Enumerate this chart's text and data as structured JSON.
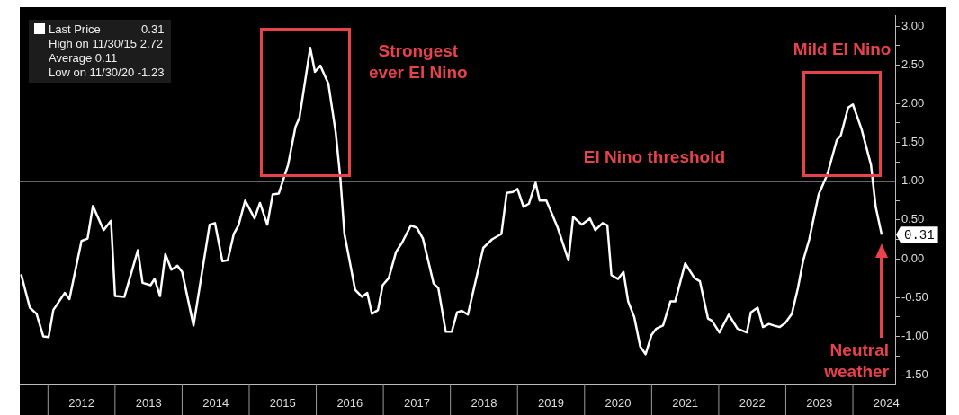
{
  "chart_data": {
    "type": "line",
    "x": [
      2011.6,
      2011.73,
      2011.83,
      2011.93,
      2012.01,
      2012.08,
      2012.25,
      2012.32,
      2012.5,
      2012.59,
      2012.67,
      2012.83,
      2012.94,
      2013.0,
      2013.14,
      2013.34,
      2013.41,
      2013.53,
      2013.59,
      2013.67,
      2013.75,
      2013.84,
      2013.93,
      2014.0,
      2014.17,
      2014.41,
      2014.49,
      2014.6,
      2014.68,
      2014.77,
      2014.84,
      2014.94,
      2015.08,
      2015.16,
      2015.27,
      2015.35,
      2015.44,
      2015.58,
      2015.69,
      2015.75,
      2015.91,
      2015.98,
      2016.06,
      2016.18,
      2016.29,
      2016.36,
      2016.42,
      2016.58,
      2016.68,
      2016.76,
      2016.83,
      2016.92,
      2016.99,
      2017.08,
      2017.19,
      2017.28,
      2017.41,
      2017.5,
      2017.59,
      2017.75,
      2017.82,
      2017.93,
      2018.02,
      2018.1,
      2018.17,
      2018.26,
      2018.49,
      2018.62,
      2018.76,
      2018.84,
      2018.93,
      2019.0,
      2019.09,
      2019.17,
      2019.27,
      2019.33,
      2019.43,
      2019.6,
      2019.76,
      2019.83,
      2019.96,
      2020.08,
      2020.16,
      2020.27,
      2020.34,
      2020.4,
      2020.5,
      2020.58,
      2020.65,
      2020.74,
      2020.83,
      2020.91,
      2021.0,
      2021.07,
      2021.17,
      2021.28,
      2021.35,
      2021.5,
      2021.64,
      2021.72,
      2021.84,
      2021.9,
      2022.01,
      2022.15,
      2022.28,
      2022.42,
      2022.48,
      2022.58,
      2022.66,
      2022.75,
      2022.82,
      2022.91,
      2022.99,
      2023.09,
      2023.18,
      2023.26,
      2023.35,
      2023.49,
      2023.62,
      2023.76,
      2023.82,
      2023.93,
      2024.0,
      2024.13,
      2024.27,
      2024.34,
      2024.43
    ],
    "series": [
      {
        "name": "Last Price",
        "color": "#ffffff",
        "values": [
          -0.2,
          -0.63,
          -0.71,
          -1.0,
          -1.01,
          -0.66,
          -0.44,
          -0.52,
          0.23,
          0.26,
          0.68,
          0.37,
          0.49,
          -0.48,
          -0.49,
          0.11,
          -0.31,
          -0.34,
          -0.26,
          -0.48,
          0.06,
          -0.14,
          -0.09,
          -0.17,
          -0.86,
          0.44,
          0.46,
          -0.03,
          -0.02,
          0.32,
          0.43,
          0.75,
          0.52,
          0.72,
          0.44,
          0.83,
          0.84,
          1.21,
          1.7,
          1.82,
          2.72,
          2.41,
          2.49,
          2.26,
          1.63,
          1.03,
          0.32,
          -0.4,
          -0.49,
          -0.44,
          -0.71,
          -0.66,
          -0.34,
          -0.25,
          0.09,
          0.21,
          0.43,
          0.4,
          0.26,
          -0.32,
          -0.38,
          -0.94,
          -0.94,
          -0.69,
          -0.67,
          -0.72,
          0.14,
          0.25,
          0.32,
          0.85,
          0.86,
          0.9,
          0.67,
          0.71,
          0.98,
          0.75,
          0.75,
          0.4,
          -0.02,
          0.54,
          0.44,
          0.52,
          0.37,
          0.46,
          0.43,
          -0.21,
          -0.26,
          -0.17,
          -0.55,
          -0.75,
          -1.13,
          -1.23,
          -0.98,
          -0.9,
          -0.86,
          -0.55,
          -0.55,
          -0.06,
          -0.25,
          -0.29,
          -0.77,
          -0.8,
          -0.95,
          -0.72,
          -0.9,
          -0.95,
          -0.69,
          -0.63,
          -0.88,
          -0.84,
          -0.86,
          -0.88,
          -0.83,
          -0.71,
          -0.38,
          -0.02,
          0.25,
          0.83,
          1.09,
          1.53,
          1.59,
          1.95,
          1.99,
          1.67,
          1.21,
          0.67,
          0.31
        ],
        "value_labels": [
          null,
          null,
          null,
          null,
          null,
          null,
          null,
          null,
          null,
          null,
          null,
          null,
          null,
          null,
          null,
          null,
          null,
          null,
          null,
          null,
          null,
          null,
          null,
          null,
          null,
          null,
          null,
          null,
          null,
          null,
          null,
          null,
          null,
          null,
          null,
          null,
          null,
          null,
          null,
          null,
          null,
          null,
          null,
          null,
          null,
          null,
          null,
          null,
          null,
          null,
          null,
          null,
          null,
          null,
          null,
          null,
          null,
          null,
          null,
          null,
          null,
          null,
          null,
          null,
          null,
          null,
          null,
          null,
          null,
          null,
          null,
          null,
          null,
          null,
          null,
          null,
          null,
          null,
          null,
          null,
          null,
          null,
          null,
          null,
          null,
          null,
          null,
          null,
          null,
          null,
          null,
          null,
          null,
          null,
          null,
          null,
          null,
          null,
          null,
          null,
          null,
          null,
          null,
          null,
          null,
          null,
          null,
          null,
          null,
          null,
          null,
          null,
          null,
          null,
          null,
          null,
          null,
          null,
          null,
          null,
          null,
          null,
          null,
          null,
          null,
          null,
          "0.31"
        ]
      }
    ],
    "xlim": [
      2011.58,
      2024.63
    ],
    "xticks": [
      {
        "value": 2012.5,
        "label": "2012"
      },
      {
        "value": 2013.5,
        "label": "2013"
      },
      {
        "value": 2014.5,
        "label": "2014"
      },
      {
        "value": 2015.5,
        "label": "2015"
      },
      {
        "value": 2016.5,
        "label": "2016"
      },
      {
        "value": 2017.5,
        "label": "2017"
      },
      {
        "value": 2018.5,
        "label": "2018"
      },
      {
        "value": 2019.5,
        "label": "2019"
      },
      {
        "value": 2020.5,
        "label": "2020"
      },
      {
        "value": 2021.5,
        "label": "2021"
      },
      {
        "value": 2022.5,
        "label": "2022"
      },
      {
        "value": 2023.5,
        "label": "2023"
      },
      {
        "value": 2024.5,
        "label": "2024"
      }
    ],
    "ylim": [
      -1.62,
      3.13
    ],
    "yticks": [
      {
        "value": -1.5,
        "label": "-1.50"
      },
      {
        "value": -1.25,
        "label": null
      },
      {
        "value": -1,
        "label": "-1.00"
      },
      {
        "value": -0.75,
        "label": null
      },
      {
        "value": -0.5,
        "label": "-0.50"
      },
      {
        "value": -0.25,
        "label": null
      },
      {
        "value": 0,
        "label": "0.00"
      },
      {
        "value": 0.25,
        "label": null
      },
      {
        "value": 0.5,
        "label": "0.50"
      },
      {
        "value": 0.75,
        "label": null
      },
      {
        "value": 1,
        "label": "1.00"
      },
      {
        "value": 1.25,
        "label": null
      },
      {
        "value": 1.5,
        "label": "1.50"
      },
      {
        "value": 1.75,
        "label": null
      },
      {
        "value": 2,
        "label": "2.00"
      },
      {
        "value": 2.25,
        "label": null
      },
      {
        "value": 2.5,
        "label": "2.50"
      },
      {
        "value": 2.75,
        "label": null
      },
      {
        "value": 3,
        "label": "3.00"
      }
    ],
    "ref_lines": [
      {
        "axis": "y",
        "value": 1,
        "label": "El Nino threshold",
        "color": "#cccccc"
      }
    ],
    "annotations": [
      "High on 11/30/15 2.72",
      "Average 0.11",
      "Low on 11/30/20 -1.23",
      {
        "text": "Mild El Nino",
        "x": 2024.0,
        "y": 1.99
      },
      "Strongest ever El Nino",
      "Neutral weather"
    ],
    "legend": "top left",
    "marker": "none",
    "line_style": "solid"
  }
}
